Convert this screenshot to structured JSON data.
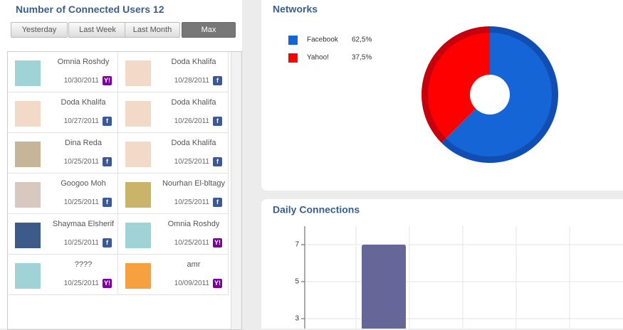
{
  "users_panel": {
    "title": "Number of Connected Users 12",
    "filters": [
      "Yesterday",
      "Last Week",
      "Last Month",
      "Max"
    ],
    "users": [
      {
        "name": "Omnia Roshdy",
        "date": "10/30/2011",
        "icon": "Y!"
      },
      {
        "name": "Doda Khalifa",
        "date": "10/28/2011",
        "icon": "f"
      },
      {
        "name": "Doda Khalifa",
        "date": "10/27/2011",
        "icon": "f"
      },
      {
        "name": "Doda Khalifa",
        "date": "10/26/2011",
        "icon": "f"
      },
      {
        "name": "Dina Reda",
        "date": "10/25/2011",
        "icon": "f"
      },
      {
        "name": "Doda Khalifa",
        "date": "10/25/2011",
        "icon": "f"
      },
      {
        "name": "Googoo Moh",
        "date": "10/25/2011",
        "icon": "f"
      },
      {
        "name": "Nourhan El-bltagy",
        "date": "10/25/2011",
        "icon": "f"
      },
      {
        "name": "Shaymaa Elsherif",
        "date": "10/25/2011",
        "icon": "f"
      },
      {
        "name": "Omnia Roshdy",
        "date": "10/25/2011",
        "icon": "Y!"
      },
      {
        "name": "????",
        "date": "10/25/2011",
        "icon": "Y!"
      },
      {
        "name": "amr",
        "date": "10/09/2011",
        "icon": "Y!"
      }
    ]
  },
  "chart_data": [
    {
      "type": "pie",
      "title": "Networks",
      "categories": [
        "Facebook",
        "Yahoo!"
      ],
      "values": [
        62.5,
        37.5
      ],
      "value_labels": [
        "62,5%",
        "37,5%"
      ],
      "colors": [
        "#1665d6",
        "#ff0000"
      ]
    },
    {
      "type": "bar",
      "title": "Daily Connections",
      "categories": [
        null
      ],
      "values": [
        7
      ],
      "color": "#666699",
      "ylim": [
        1,
        8
      ],
      "yticks": [
        3,
        5,
        7
      ],
      "grid": true
    }
  ]
}
